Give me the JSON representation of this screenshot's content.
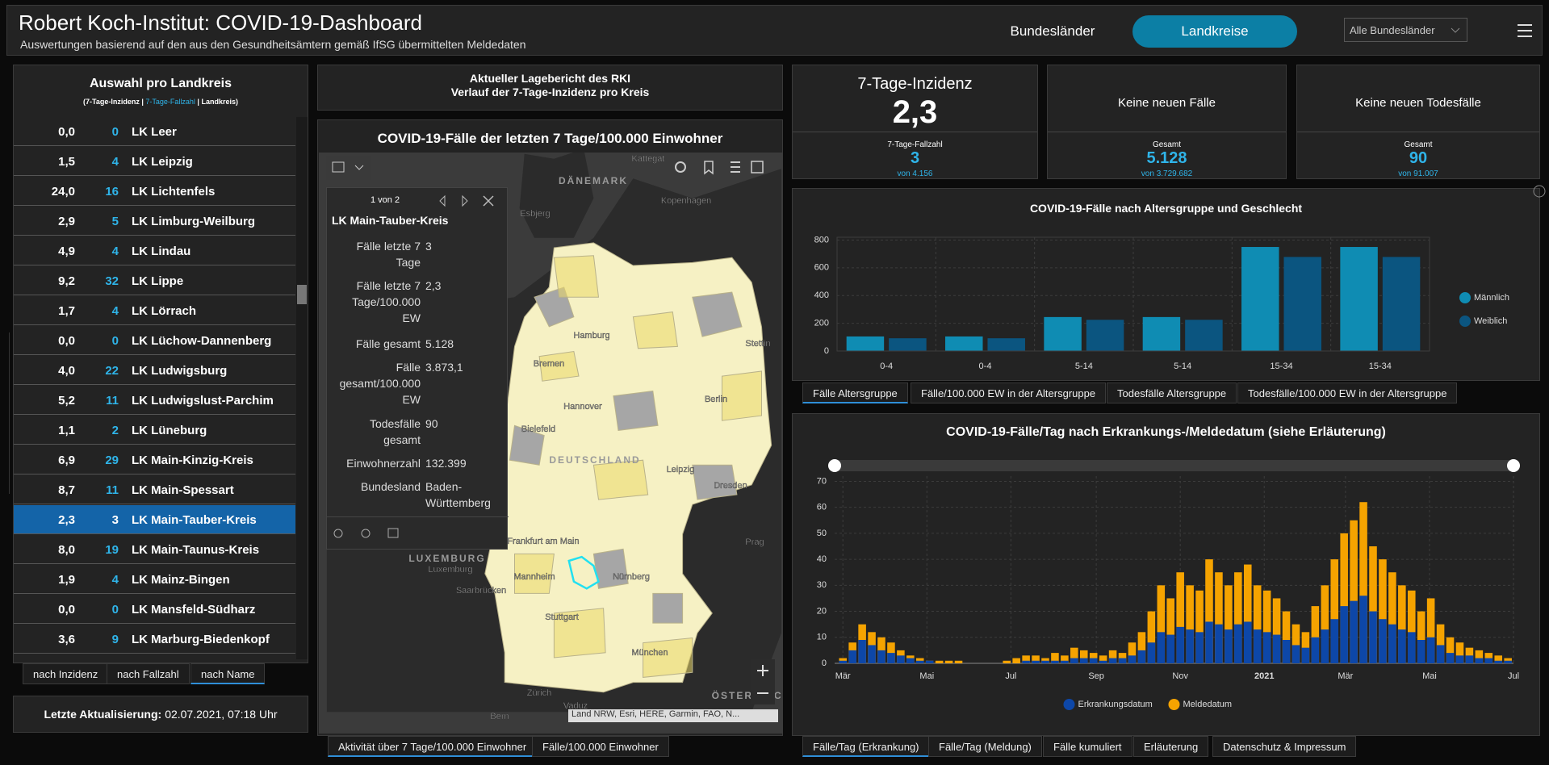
{
  "header": {
    "title": "Robert Koch-Institut: COVID-19-Dashboard",
    "subtitle": "Auswertungen basierend auf den aus den Gesundheitsämtern gemäß IfSG übermittelten Meldedaten",
    "nav": [
      "Bundesländer",
      "Landkreise"
    ],
    "active_nav": 1,
    "dropdown": "Alle Bundesländer"
  },
  "district_list": {
    "title": "Auswahl pro Landkreis",
    "legend": [
      "(7-Tage-Inzidenz | ",
      "7-Tage-Fallzahl",
      " | Landkreis)"
    ],
    "rows": [
      [
        "0,0",
        "0",
        "LK Leer"
      ],
      [
        "1,5",
        "4",
        "LK Leipzig"
      ],
      [
        "24,0",
        "16",
        "LK Lichtenfels"
      ],
      [
        "2,9",
        "5",
        "LK Limburg-Weilburg"
      ],
      [
        "4,9",
        "4",
        "LK Lindau"
      ],
      [
        "9,2",
        "32",
        "LK Lippe"
      ],
      [
        "1,7",
        "4",
        "LK Lörrach"
      ],
      [
        "0,0",
        "0",
        "LK Lüchow-Dannenberg"
      ],
      [
        "4,0",
        "22",
        "LK Ludwigsburg"
      ],
      [
        "5,2",
        "11",
        "LK Ludwigslust-Parchim"
      ],
      [
        "1,1",
        "2",
        "LK Lüneburg"
      ],
      [
        "6,9",
        "29",
        "LK Main-Kinzig-Kreis"
      ],
      [
        "8,7",
        "11",
        "LK Main-Spessart"
      ],
      [
        "2,3",
        "3",
        "LK Main-Tauber-Kreis"
      ],
      [
        "8,0",
        "19",
        "LK Main-Taunus-Kreis"
      ],
      [
        "1,9",
        "4",
        "LK Mainz-Bingen"
      ],
      [
        "0,0",
        "0",
        "LK Mansfeld-Südharz"
      ],
      [
        "3,6",
        "9",
        "LK Marburg-Biedenkopf"
      ]
    ],
    "selected": 13,
    "sort_tabs": [
      "nach Inzidenz",
      "nach Fallzahl",
      "nach Name"
    ],
    "active_sort": 2
  },
  "update": {
    "label": "Letzte Aktualisierung:",
    "value": "02.07.2021, 07:18 Uhr"
  },
  "report": {
    "lines": [
      "Aktueller Lagebericht des RKI",
      "Verlauf der 7-Tage-Inzidenz pro Kreis"
    ]
  },
  "map": {
    "title": "COVID-19-Fälle der letzten 7 Tage/100.000 Einwohner",
    "popup": {
      "pager": "1 von 2",
      "name": "LK Main-Tauber-Kreis",
      "fields": [
        [
          "Fälle letzte 7 Tage",
          "3"
        ],
        [
          "Fälle letzte 7 Tage/100.000 EW",
          "2,3"
        ],
        [
          "Fälle gesamt",
          "5.128"
        ],
        [
          "Fälle gesamt/100.000 EW",
          "3.873,1"
        ],
        [
          "Todesfälle gesamt",
          "90"
        ],
        [
          "Einwohnerzahl",
          "132.399"
        ],
        [
          "Bundesland",
          "Baden-Württemberg"
        ]
      ]
    },
    "labels": [
      "DÄNEMARK",
      "Kattegat",
      "Esbjerg",
      "Kopenhagen",
      "Hamburg",
      "Bremen",
      "Hannover",
      "Berlin",
      "Stettin",
      "Bielefeld",
      "Leipzig",
      "Dresden",
      "DEUTSCHLAND",
      "Frankfurt am Main",
      "Mannheim",
      "Nürnberg",
      "Stuttgart",
      "Saarbrücken",
      "Luxemburg",
      "LUXEMBURG",
      "Prag",
      "München",
      "Zürich",
      "Vaduz",
      "Bern",
      "ÖSTERREICH"
    ],
    "attribution": "Land NRW, Esri, HERE, Garmin, FAO, N...",
    "tabs": [
      "Aktivität über 7 Tage/100.000 Einwohner",
      "Fälle/100.000 Einwohner"
    ],
    "active_tab": 0
  },
  "cards": [
    {
      "title": "7-Tage-Inzidenz",
      "value": "2,3",
      "sub_label": "7-Tage-Fallzahl",
      "sub_value": "3",
      "sub_note": "von 4.156"
    },
    {
      "title": "Keine neuen Fälle",
      "sub_label": "Gesamt",
      "sub_value": "5.128",
      "sub_note": "von 3.729.682"
    },
    {
      "title": "Keine neuen Todesfälle",
      "sub_label": "Gesamt",
      "sub_value": "90",
      "sub_note": "von 91.007"
    }
  ],
  "chart_data": [
    {
      "type": "bar",
      "title": "COVID-19-Fälle nach Altersgruppe und Geschlecht",
      "categories": [
        "0-4",
        "0-4",
        "5-14",
        "5-14",
        "15-34",
        "15-34"
      ],
      "series": [
        {
          "name": "Männlich",
          "color": "#0f8cb3",
          "values": [
            105,
            105,
            245,
            245,
            750,
            750
          ]
        },
        {
          "name": "Weiblich",
          "color": "#0b5580",
          "values": [
            92,
            92,
            225,
            225,
            678,
            678
          ]
        }
      ],
      "ylim": [
        0,
        820
      ],
      "yticks": [
        0,
        200,
        400,
        600,
        800
      ],
      "grid": true,
      "legend": "right",
      "tabs": [
        "Fälle Altersgruppe",
        "Fälle/100.000 EW in der Altersgruppe",
        "Todesfälle Altersgruppe",
        "Todesfälle/100.000 EW in der Altersgruppe"
      ],
      "active_tab": 0
    },
    {
      "type": "bar",
      "title": "COVID-19-Fälle/Tag nach Erkrankungs-/Meldedatum (siehe Erläuterung)",
      "x": [
        0,
        7,
        14,
        21,
        28,
        35,
        42,
        49,
        56,
        63,
        70,
        77,
        84,
        91,
        98,
        105,
        112,
        119,
        126,
        133,
        140,
        147,
        154,
        161,
        168,
        175,
        182,
        189,
        196,
        203,
        210,
        217,
        224,
        231,
        238,
        245,
        252,
        259,
        266,
        273,
        280,
        287,
        294,
        301,
        308,
        315,
        322,
        329,
        336,
        343,
        350,
        357,
        364,
        371,
        378,
        385,
        392,
        399,
        406,
        413,
        420,
        427,
        434,
        441,
        448,
        455,
        462,
        469,
        476,
        483
      ],
      "series": [
        {
          "name": "Erkrankungsdatum",
          "color": "#0d47a8",
          "values": [
            1,
            5,
            9,
            7,
            5,
            4,
            3,
            2,
            1,
            1,
            0,
            0,
            0,
            0,
            0,
            0,
            0,
            0,
            0,
            1,
            1,
            1,
            1,
            1,
            2,
            2,
            2,
            1,
            2,
            2,
            3,
            5,
            8,
            12,
            11,
            14,
            13,
            12,
            16,
            15,
            13,
            15,
            16,
            13,
            12,
            11,
            9,
            7,
            6,
            10,
            13,
            17,
            22,
            24,
            26,
            20,
            17,
            15,
            13,
            12,
            9,
            10,
            7,
            4,
            3,
            3,
            2,
            2,
            1,
            1
          ]
        },
        {
          "name": "Meldedatum",
          "color": "#f5a300",
          "values": [
            2,
            8,
            15,
            12,
            10,
            8,
            5,
            3,
            2,
            1,
            1,
            1,
            1,
            0,
            0,
            0,
            0,
            1,
            2,
            3,
            3,
            2,
            4,
            3,
            6,
            5,
            4,
            3,
            5,
            4,
            8,
            12,
            20,
            30,
            25,
            35,
            30,
            28,
            40,
            35,
            30,
            35,
            38,
            30,
            28,
            25,
            20,
            15,
            12,
            22,
            30,
            40,
            50,
            55,
            62,
            45,
            40,
            35,
            30,
            28,
            20,
            25,
            15,
            10,
            8,
            6,
            5,
            4,
            3,
            2
          ]
        }
      ],
      "xlim": [
        -6,
        487
      ],
      "xticks": [
        {
          "value": 0,
          "label": "Mär"
        },
        {
          "value": 61,
          "label": "Mai"
        },
        {
          "value": 122,
          "label": "Jul"
        },
        {
          "value": 184,
          "label": "Sep"
        },
        {
          "value": 245,
          "label": "Nov"
        },
        {
          "value": 306,
          "label": "2021"
        },
        {
          "value": 365,
          "label": "Mär"
        },
        {
          "value": 426,
          "label": "Mai"
        },
        {
          "value": 487,
          "label": "Jul"
        }
      ],
      "ylim": [
        0,
        72
      ],
      "yticks": [
        0,
        10,
        20,
        30,
        40,
        50,
        60,
        70
      ],
      "grid": true,
      "legend": "bottom",
      "tabs": [
        "Fälle/Tag (Erkrankung)",
        "Fälle/Tag (Meldung)",
        "Fälle kumuliert",
        "Erläuterung",
        "Datenschutz & Impressum"
      ],
      "active_tab": 0
    }
  ]
}
